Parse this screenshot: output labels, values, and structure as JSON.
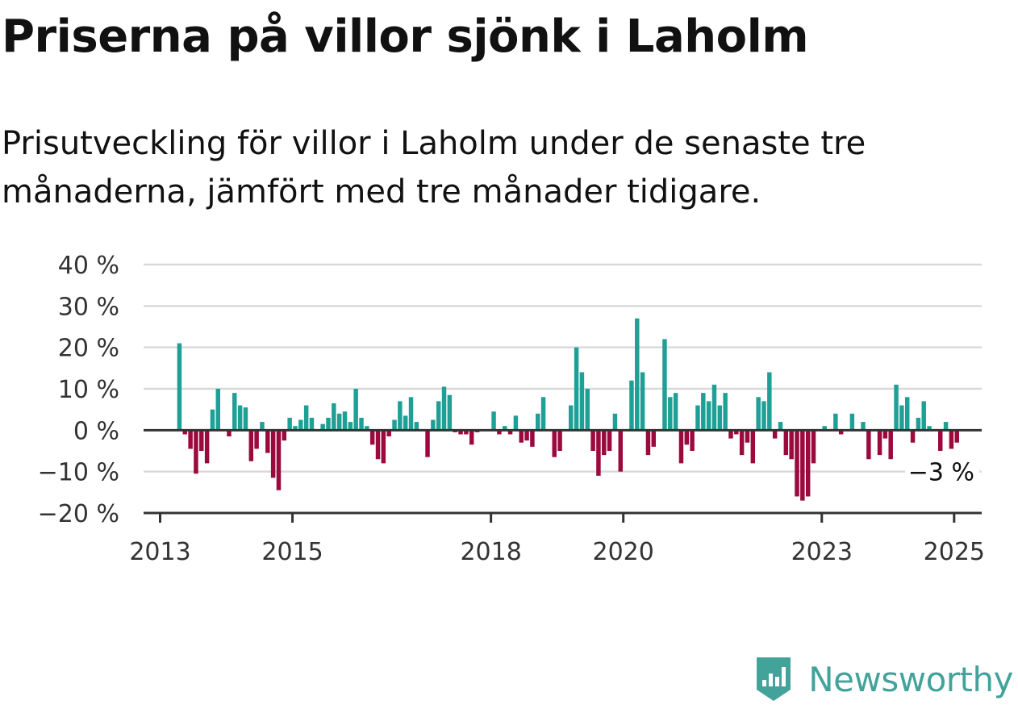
{
  "header": {
    "title": "Priserna på villor sjönk i Laholm",
    "subtitle": "Prisutveckling för villor i Laholm under de senaste tre månaderna, jämfört med tre månader tidigare."
  },
  "brand": {
    "name": "Newsworthy"
  },
  "colors": {
    "positive": "#1fa096",
    "negative": "#9b0a3d",
    "grid": "#d9d9d9",
    "axis": "#333333"
  },
  "chart_data": {
    "type": "bar",
    "title": "",
    "xlabel": "",
    "ylabel": "",
    "ylim": [
      -20,
      40
    ],
    "y_ticks": [
      -20,
      -10,
      0,
      10,
      20,
      30,
      40
    ],
    "y_tick_labels": [
      "−20 %",
      "−10 %",
      "0 %",
      "10 %",
      "20 %",
      "30 %",
      "40 %"
    ],
    "x_ticks": [
      "2013",
      "2015",
      "2018",
      "2020",
      "2023",
      "2025"
    ],
    "x_range": [
      "2012-10",
      "2025-06"
    ],
    "end_label": "−3 %",
    "grid": true,
    "series": [
      {
        "values": [
          {
            "x": "2013-04",
            "y": 21
          },
          {
            "x": "2013-05",
            "y": -1
          },
          {
            "x": "2013-06",
            "y": -4.5
          },
          {
            "x": "2013-07",
            "y": -10.5
          },
          {
            "x": "2013-08",
            "y": -5
          },
          {
            "x": "2013-09",
            "y": -8
          },
          {
            "x": "2013-10",
            "y": 5
          },
          {
            "x": "2013-11",
            "y": 10
          },
          {
            "x": "2014-01",
            "y": -1.5
          },
          {
            "x": "2014-02",
            "y": 9
          },
          {
            "x": "2014-03",
            "y": 6
          },
          {
            "x": "2014-04",
            "y": 5.5
          },
          {
            "x": "2014-05",
            "y": -7.5
          },
          {
            "x": "2014-06",
            "y": -4.5
          },
          {
            "x": "2014-07",
            "y": 2
          },
          {
            "x": "2014-08",
            "y": -5.5
          },
          {
            "x": "2014-09",
            "y": -11.5
          },
          {
            "x": "2014-10",
            "y": -14.5
          },
          {
            "x": "2014-11",
            "y": -2.5
          },
          {
            "x": "2014-12",
            "y": 3
          },
          {
            "x": "2015-01",
            "y": 1
          },
          {
            "x": "2015-02",
            "y": 2.5
          },
          {
            "x": "2015-03",
            "y": 6
          },
          {
            "x": "2015-04",
            "y": 3
          },
          {
            "x": "2015-06",
            "y": 1.5
          },
          {
            "x": "2015-07",
            "y": 3
          },
          {
            "x": "2015-08",
            "y": 6.5
          },
          {
            "x": "2015-09",
            "y": 4
          },
          {
            "x": "2015-10",
            "y": 4.5
          },
          {
            "x": "2015-11",
            "y": 2
          },
          {
            "x": "2015-12",
            "y": 10
          },
          {
            "x": "2016-01",
            "y": 3
          },
          {
            "x": "2016-02",
            "y": 1
          },
          {
            "x": "2016-03",
            "y": -3.5
          },
          {
            "x": "2016-04",
            "y": -7
          },
          {
            "x": "2016-05",
            "y": -8
          },
          {
            "x": "2016-06",
            "y": -1.5
          },
          {
            "x": "2016-07",
            "y": 2.5
          },
          {
            "x": "2016-08",
            "y": 7
          },
          {
            "x": "2016-09",
            "y": 3.5
          },
          {
            "x": "2016-10",
            "y": 8
          },
          {
            "x": "2016-11",
            "y": 2
          },
          {
            "x": "2017-01",
            "y": -6.5
          },
          {
            "x": "2017-02",
            "y": 2.5
          },
          {
            "x": "2017-03",
            "y": 7
          },
          {
            "x": "2017-04",
            "y": 10.5
          },
          {
            "x": "2017-05",
            "y": 8.5
          },
          {
            "x": "2017-06",
            "y": -0.5
          },
          {
            "x": "2017-07",
            "y": -1
          },
          {
            "x": "2017-08",
            "y": -1
          },
          {
            "x": "2017-09",
            "y": -3.5
          },
          {
            "x": "2017-10",
            "y": -0.5
          },
          {
            "x": "2018-01",
            "y": 4.5
          },
          {
            "x": "2018-02",
            "y": -1
          },
          {
            "x": "2018-03",
            "y": 1
          },
          {
            "x": "2018-04",
            "y": -1
          },
          {
            "x": "2018-05",
            "y": 3.5
          },
          {
            "x": "2018-06",
            "y": -3
          },
          {
            "x": "2018-07",
            "y": -2.5
          },
          {
            "x": "2018-08",
            "y": -4
          },
          {
            "x": "2018-09",
            "y": 4
          },
          {
            "x": "2018-10",
            "y": 8
          },
          {
            "x": "2018-12",
            "y": -6.5
          },
          {
            "x": "2019-01",
            "y": -5
          },
          {
            "x": "2019-03",
            "y": 6
          },
          {
            "x": "2019-04",
            "y": 20
          },
          {
            "x": "2019-05",
            "y": 14
          },
          {
            "x": "2019-06",
            "y": 10
          },
          {
            "x": "2019-07",
            "y": -5
          },
          {
            "x": "2019-08",
            "y": -11
          },
          {
            "x": "2019-09",
            "y": -6
          },
          {
            "x": "2019-10",
            "y": -5
          },
          {
            "x": "2019-11",
            "y": 4
          },
          {
            "x": "2019-12",
            "y": -10
          },
          {
            "x": "2020-02",
            "y": 12
          },
          {
            "x": "2020-03",
            "y": 27
          },
          {
            "x": "2020-04",
            "y": 14
          },
          {
            "x": "2020-05",
            "y": -6
          },
          {
            "x": "2020-06",
            "y": -4
          },
          {
            "x": "2020-08",
            "y": 22
          },
          {
            "x": "2020-09",
            "y": 8
          },
          {
            "x": "2020-10",
            "y": 9
          },
          {
            "x": "2020-11",
            "y": -8
          },
          {
            "x": "2020-12",
            "y": -3.5
          },
          {
            "x": "2021-01",
            "y": -5
          },
          {
            "x": "2021-02",
            "y": 6
          },
          {
            "x": "2021-03",
            "y": 9
          },
          {
            "x": "2021-04",
            "y": 7
          },
          {
            "x": "2021-05",
            "y": 11
          },
          {
            "x": "2021-06",
            "y": 6
          },
          {
            "x": "2021-07",
            "y": 9
          },
          {
            "x": "2021-08",
            "y": -2
          },
          {
            "x": "2021-09",
            "y": -1
          },
          {
            "x": "2021-10",
            "y": -6
          },
          {
            "x": "2021-11",
            "y": -3
          },
          {
            "x": "2021-12",
            "y": -8
          },
          {
            "x": "2022-01",
            "y": 8
          },
          {
            "x": "2022-02",
            "y": 7
          },
          {
            "x": "2022-03",
            "y": 14
          },
          {
            "x": "2022-04",
            "y": -2
          },
          {
            "x": "2022-05",
            "y": 2
          },
          {
            "x": "2022-06",
            "y": -6
          },
          {
            "x": "2022-07",
            "y": -7
          },
          {
            "x": "2022-08",
            "y": -16
          },
          {
            "x": "2022-09",
            "y": -17
          },
          {
            "x": "2022-10",
            "y": -16
          },
          {
            "x": "2022-11",
            "y": -8
          },
          {
            "x": "2023-01",
            "y": 1
          },
          {
            "x": "2023-03",
            "y": 4
          },
          {
            "x": "2023-04",
            "y": -1
          },
          {
            "x": "2023-06",
            "y": 4
          },
          {
            "x": "2023-08",
            "y": 2
          },
          {
            "x": "2023-09",
            "y": -7
          },
          {
            "x": "2023-11",
            "y": -6
          },
          {
            "x": "2023-12",
            "y": -2
          },
          {
            "x": "2024-01",
            "y": -7
          },
          {
            "x": "2024-02",
            "y": 11
          },
          {
            "x": "2024-03",
            "y": 6
          },
          {
            "x": "2024-04",
            "y": 8
          },
          {
            "x": "2024-05",
            "y": -3
          },
          {
            "x": "2024-06",
            "y": 3
          },
          {
            "x": "2024-07",
            "y": 7
          },
          {
            "x": "2024-08",
            "y": 1
          },
          {
            "x": "2024-10",
            "y": -5
          },
          {
            "x": "2024-11",
            "y": 2
          },
          {
            "x": "2024-12",
            "y": -4.5
          },
          {
            "x": "2025-01",
            "y": -3
          }
        ]
      }
    ]
  }
}
